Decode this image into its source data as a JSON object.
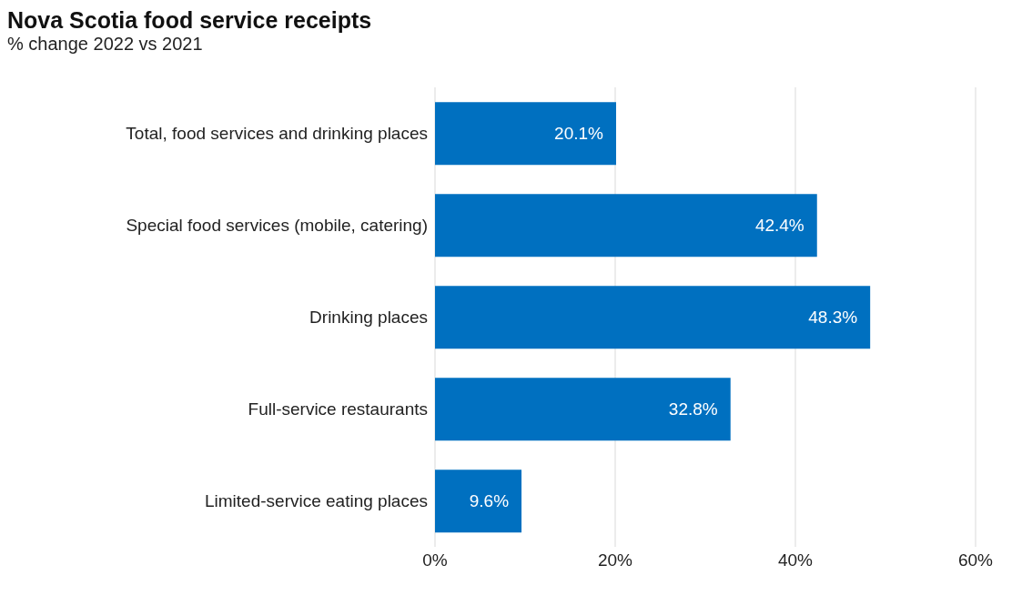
{
  "chart_data": {
    "type": "bar",
    "orientation": "horizontal",
    "title": "Nova Scotia food service receipts",
    "subtitle": "% change 2022 vs 2021",
    "categories": [
      "Total, food services and drinking places",
      "Special food services (mobile, catering)",
      "Drinking places",
      "Full-service restaurants",
      "Limited-service eating places"
    ],
    "values": [
      20.1,
      42.4,
      48.3,
      32.8,
      9.6
    ],
    "value_labels": [
      "20.1%",
      "42.4%",
      "48.3%",
      "32.8%",
      "9.6%"
    ],
    "color": "#0070c0",
    "xlim": [
      0,
      60
    ],
    "xticks": [
      {
        "value": 0,
        "label": "0%"
      },
      {
        "value": 20,
        "label": "20%"
      },
      {
        "value": 40,
        "label": "40%"
      },
      {
        "value": 60,
        "label": "60%"
      }
    ],
    "grid": "x"
  }
}
